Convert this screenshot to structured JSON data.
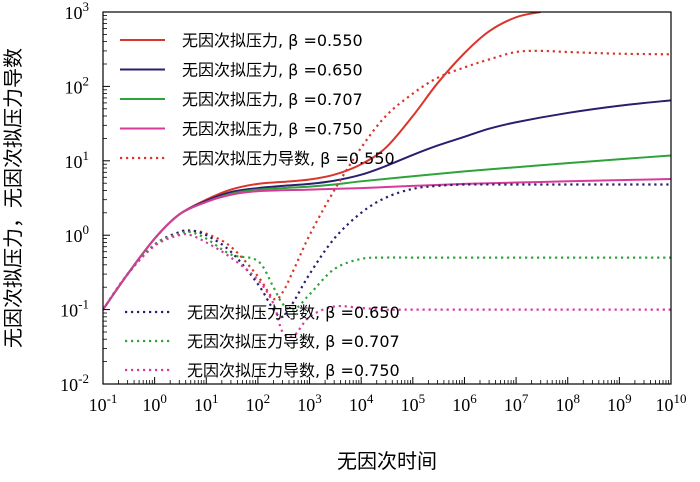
{
  "chart_data": {
    "type": "line",
    "xlabel": "无因次时间",
    "ylabel": "无因次拟压力，无因次拟压力导数",
    "x_scale": "log",
    "y_scale": "log",
    "xlim": [
      0.1,
      10000000000.0
    ],
    "ylim": [
      0.01,
      1000
    ],
    "x_ticks": [
      {
        "value": 0.1,
        "base": "10",
        "exp": "-1"
      },
      {
        "value": 1,
        "base": "10",
        "exp": "0"
      },
      {
        "value": 10,
        "base": "10",
        "exp": "1"
      },
      {
        "value": 100,
        "base": "10",
        "exp": "2"
      },
      {
        "value": 1000,
        "base": "10",
        "exp": "3"
      },
      {
        "value": 10000,
        "base": "10",
        "exp": "4"
      },
      {
        "value": 100000,
        "base": "10",
        "exp": "5"
      },
      {
        "value": 1000000,
        "base": "10",
        "exp": "6"
      },
      {
        "value": 10000000,
        "base": "10",
        "exp": "7"
      },
      {
        "value": 100000000,
        "base": "10",
        "exp": "8"
      },
      {
        "value": 1000000000,
        "base": "10",
        "exp": "9"
      },
      {
        "value": 10000000000,
        "base": "10",
        "exp": "10"
      }
    ],
    "y_ticks": [
      {
        "value": 0.01,
        "base": "10",
        "exp": "-2"
      },
      {
        "value": 0.1,
        "base": "10",
        "exp": "-1"
      },
      {
        "value": 1,
        "base": "10",
        "exp": "0"
      },
      {
        "value": 10,
        "base": "10",
        "exp": "1"
      },
      {
        "value": 100,
        "base": "10",
        "exp": "2"
      },
      {
        "value": 1000,
        "base": "10",
        "exp": "3"
      }
    ],
    "legend_groups": [
      {
        "position": "top-left",
        "series_indices": [
          0,
          1,
          2,
          3,
          4
        ]
      },
      {
        "position": "bottom-left",
        "series_indices": [
          5,
          6,
          7
        ]
      }
    ],
    "series": [
      {
        "name": "无因次拟压力, β =0.550",
        "color": "#d9352a",
        "style": "solid",
        "x": [
          0.1,
          0.3,
          1,
          3,
          10,
          30,
          100,
          300,
          1000,
          3000,
          10000,
          30000,
          100000,
          300000,
          1000000,
          3000000,
          10000000,
          30000000
        ],
        "y": [
          0.1,
          0.3,
          0.9,
          1.9,
          3.0,
          4.1,
          4.9,
          5.2,
          5.6,
          6.5,
          9,
          15,
          40,
          110,
          280,
          550,
          850,
          1000
        ]
      },
      {
        "name": "无因次拟压力, β =0.650",
        "color": "#2a1e6e",
        "style": "solid",
        "x": [
          0.1,
          0.3,
          1,
          3,
          10,
          30,
          100,
          300,
          1000,
          3000,
          10000,
          30000,
          100000,
          300000,
          1000000,
          3000000,
          10000000,
          100000000,
          1000000000,
          10000000000
        ],
        "y": [
          0.1,
          0.3,
          0.9,
          1.9,
          2.9,
          3.8,
          4.3,
          4.6,
          4.9,
          5.4,
          6.5,
          8.5,
          12,
          16,
          21,
          27,
          33,
          44,
          55,
          65
        ]
      },
      {
        "name": "无因次拟压力, β =0.707",
        "color": "#2ea33a",
        "style": "solid",
        "x": [
          0.1,
          0.3,
          1,
          3,
          10,
          30,
          100,
          300,
          1000,
          3000,
          10000,
          100000,
          1000000,
          10000000,
          100000000,
          1000000000,
          10000000000
        ],
        "y": [
          0.1,
          0.3,
          0.9,
          1.9,
          2.8,
          3.6,
          4.1,
          4.3,
          4.5,
          4.8,
          5.3,
          6.2,
          7.2,
          8.2,
          9.3,
          10.5,
          11.8
        ]
      },
      {
        "name": "无因次拟压力, β =0.750",
        "color": "#d63b9c",
        "style": "solid",
        "x": [
          0.1,
          0.3,
          1,
          3,
          10,
          30,
          100,
          1000,
          10000,
          100000,
          1000000,
          10000000,
          100000000,
          1000000000,
          10000000000
        ],
        "y": [
          0.1,
          0.3,
          0.9,
          1.9,
          2.8,
          3.5,
          3.9,
          4.1,
          4.3,
          4.6,
          4.9,
          5.1,
          5.3,
          5.5,
          5.7
        ]
      },
      {
        "name": "无因次拟压力导数, β =0.550",
        "color": "#d9352a",
        "style": "dotted",
        "x": [
          0.1,
          0.3,
          1,
          3,
          5,
          10,
          30,
          100,
          200,
          300,
          500,
          1000,
          3000,
          10000,
          30000,
          100000,
          300000,
          1000000,
          3000000,
          10000000,
          30000000,
          100000000,
          1000000000,
          10000000000
        ],
        "y": [
          0.1,
          0.3,
          0.75,
          1.1,
          1.15,
          1.05,
          0.7,
          0.28,
          0.14,
          0.17,
          0.35,
          1.0,
          4,
          15,
          40,
          80,
          130,
          180,
          230,
          290,
          300,
          290,
          275,
          270
        ]
      },
      {
        "name": "无因次拟压力导数, β =0.650",
        "color": "#2a1e6e",
        "style": "dotted",
        "x": [
          0.1,
          0.3,
          1,
          3,
          5,
          10,
          30,
          100,
          200,
          300,
          500,
          1000,
          3000,
          10000,
          30000,
          100000,
          300000,
          1000000,
          10000000,
          100000000,
          1000000000,
          10000000000
        ],
        "y": [
          0.1,
          0.3,
          0.75,
          1.1,
          1.15,
          1.0,
          0.6,
          0.22,
          0.1,
          0.08,
          0.13,
          0.3,
          0.9,
          2.0,
          3.2,
          4.2,
          4.6,
          4.8,
          4.8,
          4.8,
          4.8,
          4.8
        ]
      },
      {
        "name": "无因次拟压力导数, β =0.707",
        "color": "#2ea33a",
        "style": "dotted",
        "x": [
          0.1,
          0.3,
          1,
          3,
          5,
          10,
          30,
          100,
          200,
          300,
          500,
          1000,
          3000,
          10000,
          30000,
          100000,
          1000000,
          10000000,
          100000000,
          1000000000,
          10000000000
        ],
        "y": [
          0.1,
          0.3,
          0.75,
          1.05,
          1.1,
          0.9,
          0.55,
          0.45,
          0.2,
          0.12,
          0.1,
          0.16,
          0.35,
          0.48,
          0.5,
          0.5,
          0.5,
          0.5,
          0.5,
          0.5,
          0.5
        ]
      },
      {
        "name": "无因次拟压力导数, β =0.750",
        "color": "#d63b9c",
        "style": "dotted",
        "x": [
          0.1,
          0.3,
          1,
          3,
          5,
          10,
          30,
          100,
          200,
          300,
          500,
          1000,
          3000,
          10000,
          30000,
          100000,
          1000000,
          10000000,
          100000000,
          1000000000,
          10000000000
        ],
        "y": [
          0.1,
          0.3,
          0.72,
          1.0,
          1.0,
          0.8,
          0.5,
          0.25,
          0.12,
          0.05,
          0.045,
          0.08,
          0.11,
          0.105,
          0.1,
          0.1,
          0.1,
          0.1,
          0.1,
          0.1,
          0.1
        ]
      }
    ]
  }
}
